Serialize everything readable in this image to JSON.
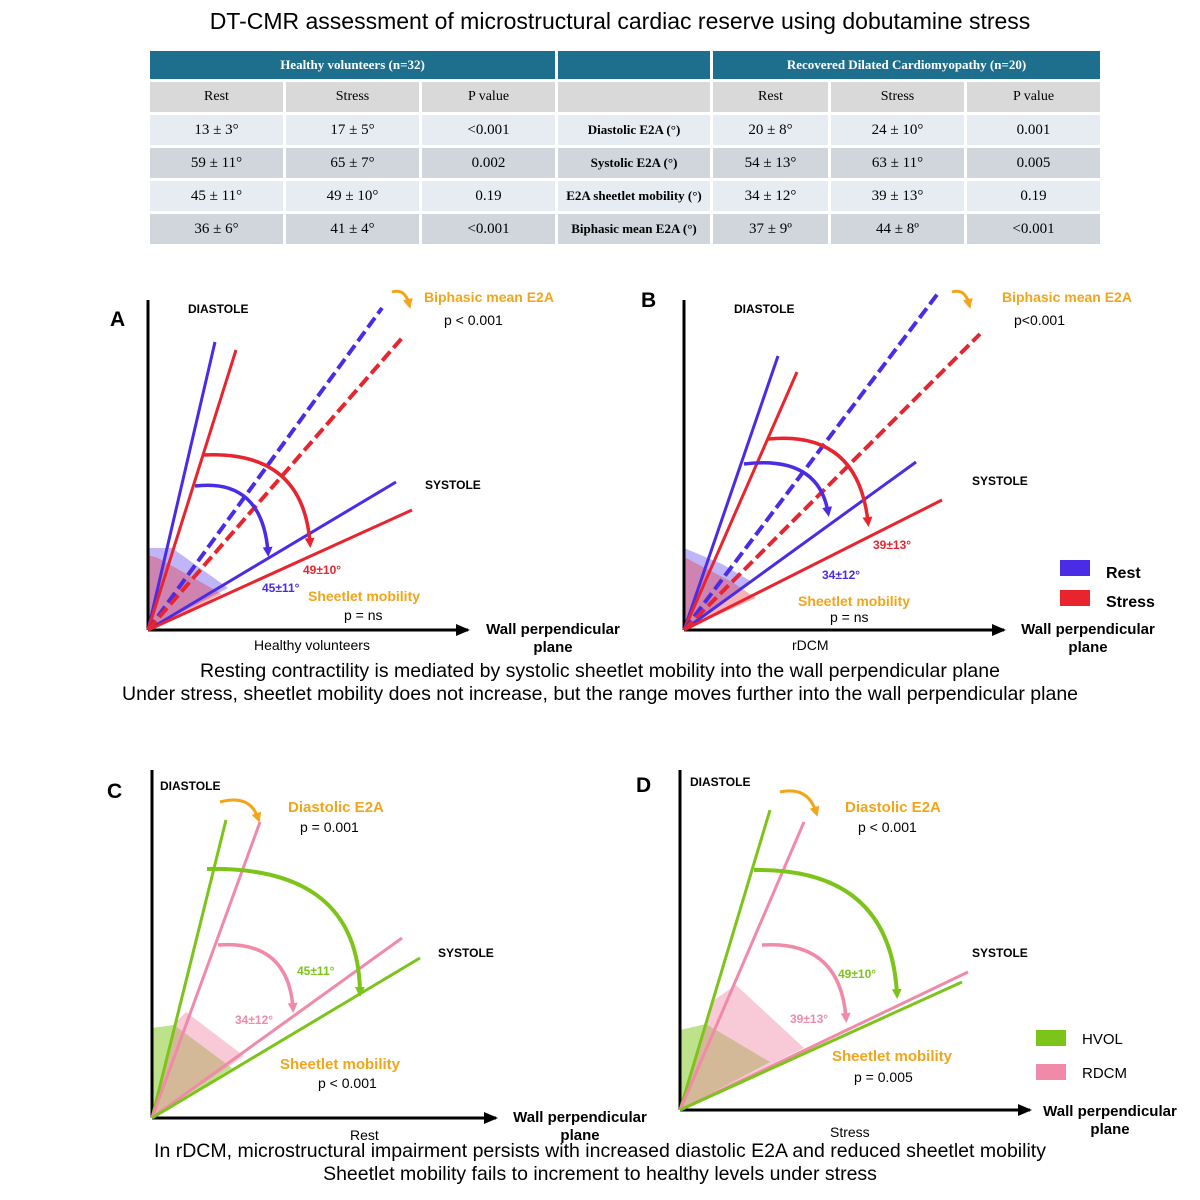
{
  "title": "DT-CMR assessment of microstructural cardiac reserve using dobutamine stress",
  "colors": {
    "header": "#1e6f8e",
    "rest": "#4a2be6",
    "stress": "#e8252e",
    "hvol": "#7dc41a",
    "rdcm": "#f08aa8",
    "annotation": "#f2a51a"
  },
  "table": {
    "group_headers": {
      "healthy": "Healthy volunteers (n=32)",
      "middle": "",
      "rdcm": "Recovered Dilated Cardiomyopathy (n=20)"
    },
    "col_headers": [
      "Rest",
      "Stress",
      "P value",
      "",
      "Rest",
      "Stress",
      "P value"
    ],
    "rows": [
      {
        "h_rest": "13 ± 3°",
        "h_stress": "17 ± 5°",
        "h_p": "<0.001",
        "param": "Diastolic E2A (°)",
        "r_rest": "20 ± 8°",
        "r_stress": "24 ± 10°",
        "r_p": "0.001"
      },
      {
        "h_rest": "59 ± 11°",
        "h_stress": "65 ± 7°",
        "h_p": "0.002",
        "param": "Systolic E2A (°)",
        "r_rest": "54 ± 13°",
        "r_stress": "63 ± 11°",
        "r_p": "0.005"
      },
      {
        "h_rest": "45 ± 11°",
        "h_stress": "49 ± 10°",
        "h_p": "0.19",
        "param": "E2A sheetlet mobility (°)",
        "r_rest": "34 ± 12°",
        "r_stress": "39 ± 13°",
        "r_p": "0.19"
      },
      {
        "h_rest": "36 ± 6°",
        "h_stress": "41 ± 4°",
        "h_p": "<0.001",
        "param": "Biphasic mean E2A (°)",
        "r_rest": "37 ± 9º",
        "r_stress": "44 ± 8º",
        "r_p": "<0.001"
      }
    ]
  },
  "panels": {
    "A": {
      "letter": "A",
      "diastole": "DIASTOLE",
      "systole": "SYSTOLE",
      "top_label": "Biphasic mean E2A",
      "top_p": "p < 0.001",
      "val1": "45±11°",
      "val2": "49±10°",
      "mob_label": "Sheetlet mobility",
      "mob_p": "p = ns",
      "x_caption": "Healthy volunteers",
      "axis_label_1": "Wall perpendicular",
      "axis_label_2": "plane"
    },
    "B": {
      "letter": "B",
      "diastole": "DIASTOLE",
      "systole": "SYSTOLE",
      "top_label": "Biphasic mean E2A",
      "top_p": "p<0.001",
      "val1": "34±12°",
      "val2": "39±13°",
      "mob_label": "Sheetlet mobility",
      "mob_p": "p = ns",
      "x_caption": "rDCM",
      "axis_label_1": "Wall perpendicular",
      "axis_label_2": "plane"
    },
    "C": {
      "letter": "C",
      "diastole": "DIASTOLE",
      "systole": "SYSTOLE",
      "top_label": "Diastolic E2A",
      "top_p": "p = 0.001",
      "val1": "45±11°",
      "val2": "34±12°",
      "mob_label": "Sheetlet mobility",
      "mob_p": "p < 0.001",
      "x_caption": "Rest",
      "axis_label_1": "Wall perpendicular",
      "axis_label_2": "plane"
    },
    "D": {
      "letter": "D",
      "diastole": "DIASTOLE",
      "systole": "SYSTOLE",
      "top_label": "Diastolic E2A",
      "top_p": "p < 0.001",
      "val1": "49±10°",
      "val2": "39±13°",
      "mob_label": "Sheetlet mobility",
      "mob_p": "p = 0.005",
      "x_caption": "Stress",
      "axis_label_1": "Wall perpendicular",
      "axis_label_2": "plane"
    }
  },
  "legend_top": {
    "rest": "Rest",
    "stress": "Stress"
  },
  "legend_bottom": {
    "hvol": "HVOL",
    "rdcm": "RDCM"
  },
  "caption_middle": {
    "line1": "Resting contractility is mediated by systolic sheetlet mobility into the wall perpendicular plane",
    "line2": "Under stress, sheetlet mobility does not increase, but the range moves further into the wall perpendicular plane"
  },
  "caption_bottom": {
    "line1": "In rDCM, microstructural impairment persists with increased diastolic E2A and reduced sheetlet mobility",
    "line2": "Sheetlet mobility fails to increment to healthy levels under stress"
  }
}
